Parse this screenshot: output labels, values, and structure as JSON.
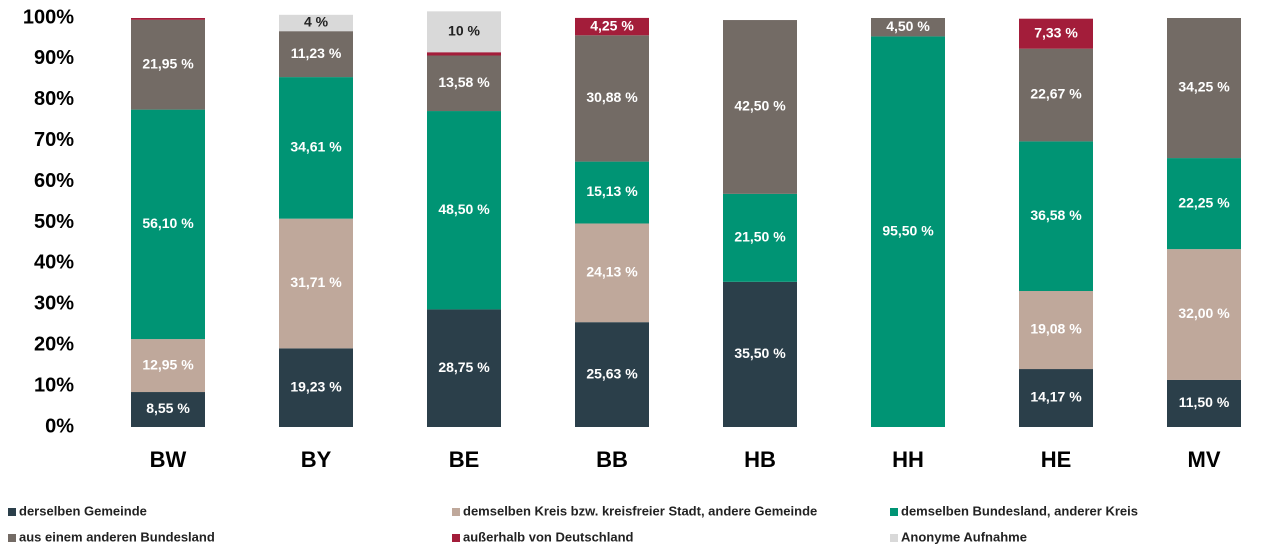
{
  "chart_data": {
    "type": "stacked_bar",
    "categories": [
      "BW",
      "BY",
      "BE",
      "BB",
      "HB",
      "HH",
      "HE",
      "MV"
    ],
    "ylim": [
      0,
      100
    ],
    "yticks": [
      {
        "value": 0,
        "label": "0%"
      },
      {
        "value": 10,
        "label": "10%"
      },
      {
        "value": 20,
        "label": "20%"
      },
      {
        "value": 30,
        "label": "30%"
      },
      {
        "value": 40,
        "label": "40%"
      },
      {
        "value": 50,
        "label": "50%"
      },
      {
        "value": 60,
        "label": "60%"
      },
      {
        "value": 70,
        "label": "70%"
      },
      {
        "value": 80,
        "label": "80%"
      },
      {
        "value": 90,
        "label": "90%"
      },
      {
        "value": 100,
        "label": "100%"
      }
    ],
    "legend": "bottom",
    "series": [
      {
        "name": "derselben Gemeinde",
        "color": "#2b3f4a",
        "values": [
          8.55,
          19.23,
          28.75,
          25.63,
          35.5,
          null,
          14.17,
          11.5
        ],
        "value_labels": [
          "8,55 %",
          "19,23 %",
          "28,75 %",
          "25,63 %",
          "35,50 %",
          null,
          "14,17 %",
          "11,50 %"
        ]
      },
      {
        "name": "demselben Kreis bzw. kreisfreier Stadt, andere Gemeinde",
        "color": "#bfa89b",
        "values": [
          12.95,
          31.71,
          null,
          24.13,
          null,
          null,
          19.08,
          32.0
        ],
        "value_labels": [
          "12,95 %",
          "31,71 %",
          null,
          "24,13 %",
          null,
          null,
          "19,08 %",
          "32,00 %"
        ]
      },
      {
        "name": "demselben Bundesland, anderer Kreis",
        "color": "#009474",
        "values": [
          56.1,
          34.61,
          48.5,
          15.13,
          21.5,
          95.5,
          36.58,
          22.25
        ],
        "value_labels": [
          "56,10 %",
          "34,61 %",
          "48,50 %",
          "15,13 %",
          "21,50 %",
          "95,50 %",
          "36,58 %",
          "22,25 %"
        ]
      },
      {
        "name": "aus einem anderen Bundesland",
        "color": "#736b65",
        "values": [
          21.95,
          11.23,
          13.58,
          30.88,
          42.5,
          4.5,
          22.67,
          34.25
        ],
        "value_labels": [
          "21,95 %",
          "11,23 %",
          "13,58 %",
          "30,88 %",
          "42,50 %",
          "4,50 %",
          "22,67 %",
          "34,25 %"
        ]
      },
      {
        "name": "außerhalb von Deutschland",
        "color": "#a31d3a",
        "values": [
          0.45,
          null,
          0.8,
          4.25,
          null,
          null,
          7.33,
          null
        ],
        "value_labels": [
          null,
          null,
          null,
          "4,25 %",
          null,
          null,
          "7,33 %",
          null
        ]
      },
      {
        "name": "Anonyme Aufnahme",
        "color": "#d9d9d9",
        "values": [
          null,
          4,
          10,
          null,
          null,
          null,
          null,
          null
        ],
        "value_labels": [
          null,
          "4 %",
          "10 %",
          null,
          null,
          null,
          null,
          null
        ]
      }
    ]
  }
}
